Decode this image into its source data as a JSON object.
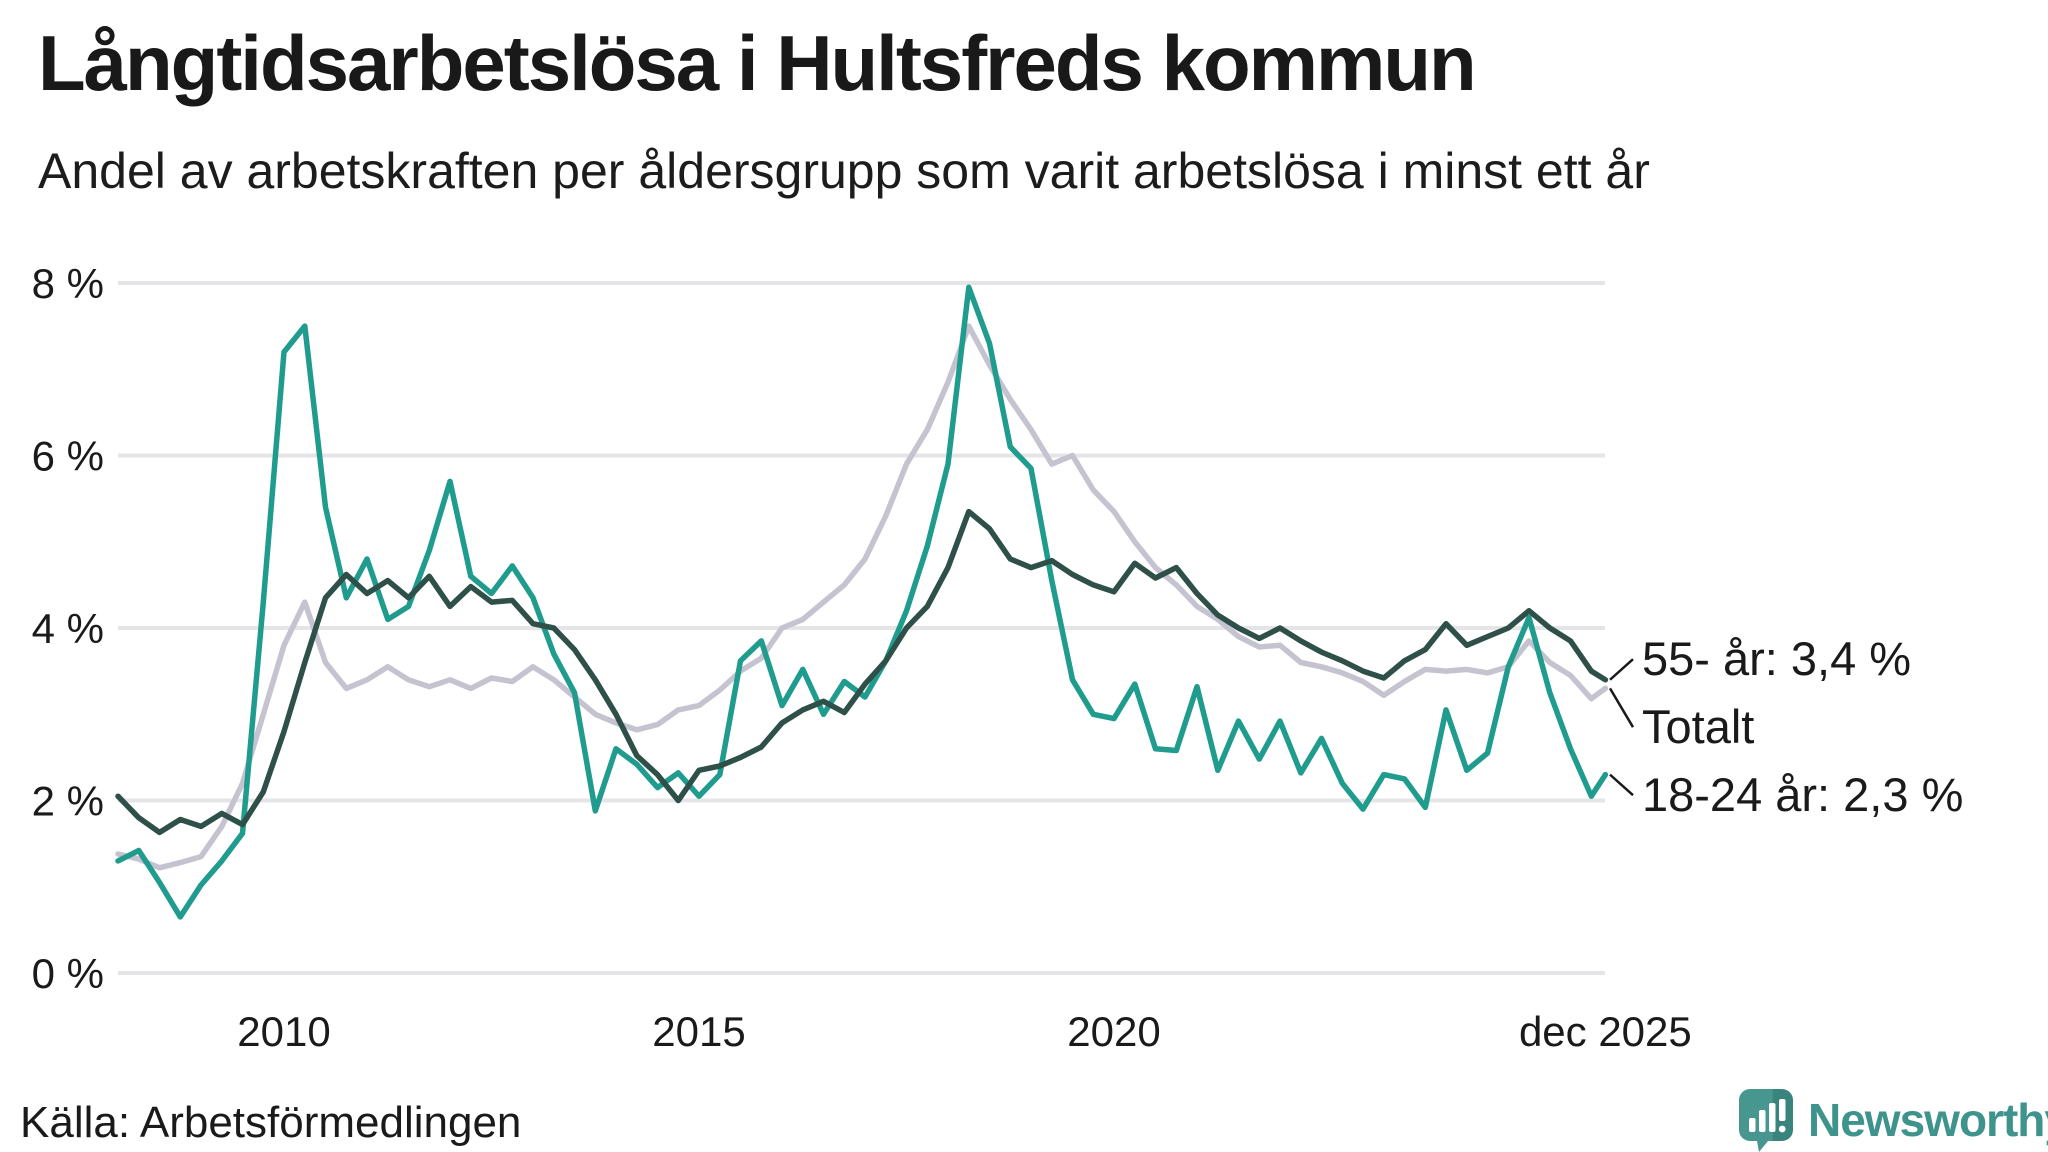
{
  "header": {
    "title": "Långtidsarbetslösa i Hultsfreds kommun",
    "subtitle": "Andel av arbetskraften per åldersgrupp som varit arbetslösa i minst ett år"
  },
  "footer": {
    "source": "Källa: Arbetsförmedlingen",
    "brand": "Newsworthy"
  },
  "colors": {
    "teal_series": "#1f9c8e",
    "dark_series": "#2e5048",
    "gray_series": "#c5c3cf",
    "gridline": "#e5e5e8",
    "text": "#1a1a1a",
    "connector": "#1a1a1a",
    "brand_teal": "#3e938d",
    "brand_teal_dark": "#2f7f7a"
  },
  "chart_data": {
    "type": "line",
    "title": "Långtidsarbetslösa i Hultsfreds kommun",
    "subtitle": "Andel av arbetskraften per åldersgrupp som varit arbetslösa i minst ett år",
    "unit": "%",
    "grid": true,
    "legend_position": "end-of-line-labels",
    "y_axis": {
      "range": [
        0,
        8
      ],
      "tick_values": [
        0,
        2,
        4,
        6,
        8
      ],
      "tick_labels": [
        "0 %",
        "2 %",
        "4 %",
        "6 %",
        "8 %"
      ]
    },
    "x_axis": {
      "range": [
        2008.0,
        2025.92
      ],
      "ticks": [
        {
          "label": "2010",
          "year": 2010
        },
        {
          "label": "2015",
          "year": 2015
        },
        {
          "label": "2020",
          "year": 2020
        },
        {
          "label": "dec 2025",
          "year": 2025.92
        }
      ]
    },
    "x": [
      2008.0,
      2008.25,
      2008.5,
      2008.75,
      2009.0,
      2009.25,
      2009.5,
      2009.75,
      2010.0,
      2010.25,
      2010.5,
      2010.75,
      2011.0,
      2011.25,
      2011.5,
      2011.75,
      2012.0,
      2012.25,
      2012.5,
      2012.75,
      2013.0,
      2013.25,
      2013.5,
      2013.75,
      2014.0,
      2014.25,
      2014.5,
      2014.75,
      2015.0,
      2015.25,
      2015.5,
      2015.75,
      2016.0,
      2016.25,
      2016.5,
      2016.75,
      2017.0,
      2017.25,
      2017.5,
      2017.75,
      2018.0,
      2018.25,
      2018.5,
      2018.75,
      2019.0,
      2019.25,
      2019.5,
      2019.75,
      2020.0,
      2020.25,
      2020.5,
      2020.75,
      2021.0,
      2021.25,
      2021.5,
      2021.75,
      2022.0,
      2022.25,
      2022.5,
      2022.75,
      2023.0,
      2023.25,
      2023.5,
      2023.75,
      2024.0,
      2024.25,
      2024.5,
      2024.75,
      2025.0,
      2025.25,
      2025.5,
      2025.75,
      2025.92
    ],
    "series": [
      {
        "id": "totalt",
        "name": "Totalt",
        "color": "#c5c3cf",
        "end_label": "Totalt",
        "values": [
          1.38,
          1.32,
          1.22,
          1.28,
          1.35,
          1.7,
          2.2,
          3.0,
          3.8,
          4.3,
          3.6,
          3.3,
          3.4,
          3.55,
          3.4,
          3.32,
          3.4,
          3.3,
          3.42,
          3.38,
          3.55,
          3.4,
          3.2,
          3.0,
          2.9,
          2.82,
          2.88,
          3.05,
          3.1,
          3.28,
          3.5,
          3.65,
          4.0,
          4.1,
          4.3,
          4.5,
          4.8,
          5.3,
          5.9,
          6.3,
          6.85,
          7.5,
          7.05,
          6.65,
          6.3,
          5.9,
          6.0,
          5.6,
          5.35,
          5.0,
          4.7,
          4.5,
          4.25,
          4.1,
          3.9,
          3.78,
          3.8,
          3.6,
          3.55,
          3.48,
          3.38,
          3.22,
          3.38,
          3.52,
          3.5,
          3.52,
          3.48,
          3.55,
          3.85,
          3.6,
          3.45,
          3.18,
          3.3
        ]
      },
      {
        "id": "18-24",
        "name": "18-24 år",
        "color": "#1f9c8e",
        "end_label": "18-24 år: 2,3 %",
        "end_value": 2.3,
        "values": [
          1.3,
          1.42,
          1.05,
          0.65,
          1.02,
          1.3,
          1.62,
          4.3,
          7.2,
          7.5,
          5.4,
          4.35,
          4.8,
          4.1,
          4.25,
          4.9,
          5.7,
          4.6,
          4.4,
          4.72,
          4.35,
          3.7,
          3.25,
          1.88,
          2.6,
          2.42,
          2.15,
          2.32,
          2.05,
          2.3,
          3.62,
          3.85,
          3.1,
          3.52,
          3.0,
          3.38,
          3.2,
          3.62,
          4.2,
          4.95,
          5.9,
          7.95,
          7.3,
          6.1,
          5.85,
          4.55,
          3.4,
          3.0,
          2.95,
          3.35,
          2.6,
          2.58,
          3.32,
          2.35,
          2.92,
          2.48,
          2.92,
          2.32,
          2.72,
          2.2,
          1.9,
          2.3,
          2.25,
          1.92,
          3.05,
          2.35,
          2.55,
          3.55,
          4.12,
          3.25,
          2.6,
          2.05,
          2.3
        ]
      },
      {
        "id": "55plus",
        "name": "55- år",
        "color": "#2e5048",
        "end_label": "55- år: 3,4 %",
        "end_value": 3.4,
        "values": [
          2.05,
          1.8,
          1.63,
          1.78,
          1.7,
          1.85,
          1.72,
          2.1,
          2.8,
          3.6,
          4.35,
          4.62,
          4.4,
          4.55,
          4.35,
          4.6,
          4.25,
          4.48,
          4.3,
          4.32,
          4.05,
          4.0,
          3.75,
          3.4,
          3.0,
          2.52,
          2.3,
          2.0,
          2.35,
          2.4,
          2.5,
          2.62,
          2.9,
          3.05,
          3.15,
          3.02,
          3.35,
          3.62,
          4.0,
          4.25,
          4.7,
          5.35,
          5.15,
          4.8,
          4.7,
          4.78,
          4.62,
          4.5,
          4.42,
          4.75,
          4.58,
          4.7,
          4.4,
          4.15,
          4.0,
          3.88,
          4.0,
          3.85,
          3.72,
          3.62,
          3.5,
          3.42,
          3.62,
          3.75,
          4.05,
          3.8,
          3.9,
          4.0,
          4.2,
          4.0,
          3.85,
          3.5,
          3.4
        ]
      }
    ]
  }
}
